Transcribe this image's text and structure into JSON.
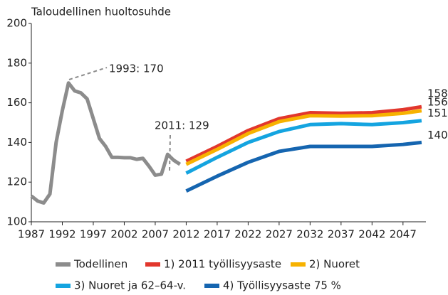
{
  "chart_data": {
    "type": "line",
    "title": "Taloudellinen huoltosuhde",
    "xlim": [
      1987,
      2050.7
    ],
    "xticks": [
      1987,
      1992,
      1997,
      2002,
      2007,
      2012,
      2017,
      2022,
      2027,
      2032,
      2037,
      2042,
      2047
    ],
    "ylim": [
      100,
      200
    ],
    "yticks": [
      100,
      120,
      140,
      160,
      180,
      200
    ],
    "grid": false,
    "annotations": [
      {
        "text": "1993: 170"
      },
      {
        "text": "2011: 129"
      }
    ],
    "series": [
      {
        "name": "Todellinen",
        "color": "#8c8c8c",
        "x": [
          1987,
          1988,
          1989,
          1990,
          1991,
          1992,
          1993,
          1994,
          1995,
          1996,
          1997,
          1998,
          1999,
          2000,
          2001,
          2002,
          2003,
          2004,
          2005,
          2006,
          2007,
          2008,
          2009,
          2010,
          2011
        ],
        "values": [
          113,
          110.5,
          109.5,
          114,
          140,
          156,
          170,
          166,
          165,
          162,
          152,
          142,
          138,
          132.5,
          132.5,
          132.3,
          132.3,
          131.5,
          132,
          128,
          123.5,
          124,
          134,
          131,
          129
        ]
      },
      {
        "name": "1) 2011 työllisyysaste",
        "color": "#e2372d",
        "x": [
          2012,
          2017,
          2022,
          2027,
          2032,
          2037,
          2042,
          2047,
          2050
        ],
        "values": [
          130.5,
          138,
          146,
          152,
          155,
          154.7,
          155,
          156.5,
          158
        ]
      },
      {
        "name": "2) Nuoret",
        "color": "#f7b200",
        "x": [
          2012,
          2017,
          2022,
          2027,
          2032,
          2037,
          2042,
          2047,
          2050
        ],
        "values": [
          129,
          136.5,
          144.5,
          150.5,
          153.5,
          153.3,
          153.5,
          154.7,
          156
        ]
      },
      {
        "name": "3) Nuoret ja 62–64-v.",
        "color": "#14a4e0",
        "x": [
          2012,
          2017,
          2022,
          2027,
          2032,
          2037,
          2042,
          2047,
          2050
        ],
        "values": [
          124.5,
          132.5,
          140,
          145.5,
          149,
          149.5,
          149,
          150,
          151
        ]
      },
      {
        "name": "4) Työllisyysaste 75 %",
        "color": "#1565b0",
        "x": [
          2012,
          2017,
          2022,
          2027,
          2032,
          2037,
          2042,
          2047,
          2050
        ],
        "values": [
          115.5,
          123,
          130,
          135.5,
          138,
          138,
          138,
          139,
          140
        ]
      }
    ]
  }
}
